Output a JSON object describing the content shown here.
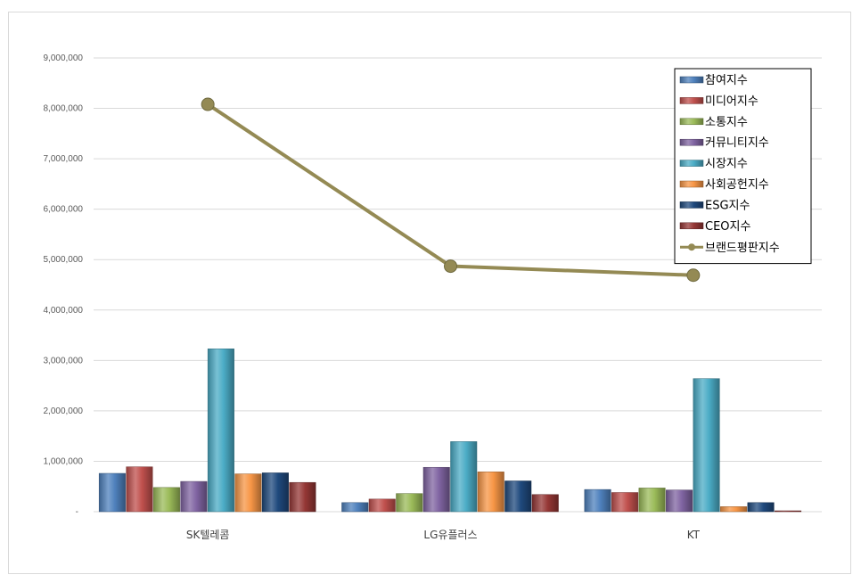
{
  "chart_data": {
    "type": "bar",
    "categories": [
      "SK텔레콤",
      "LG유플러스",
      "KT"
    ],
    "series": [
      {
        "name": "참여지수",
        "color": "#4f81bd",
        "values": [
          760000,
          180000,
          440000
        ]
      },
      {
        "name": "미디어지수",
        "color": "#c0504d",
        "values": [
          890000,
          250000,
          380000
        ]
      },
      {
        "name": "소통지수",
        "color": "#9bbb59",
        "values": [
          480000,
          360000,
          470000
        ]
      },
      {
        "name": "커뮤니티지수",
        "color": "#8064a2",
        "values": [
          600000,
          880000,
          430000
        ]
      },
      {
        "name": "시장지수",
        "color": "#4bacc6",
        "values": [
          3230000,
          1390000,
          2640000
        ]
      },
      {
        "name": "사회공헌지수",
        "color": "#f79646",
        "values": [
          750000,
          790000,
          100000
        ]
      },
      {
        "name": "ESG지수",
        "color": "#1f497d",
        "values": [
          770000,
          610000,
          180000
        ]
      },
      {
        "name": "CEO지수",
        "color": "#953735",
        "values": [
          580000,
          340000,
          10000
        ]
      }
    ],
    "line_series": {
      "name": "브랜드평판지수",
      "color": "#948a54",
      "values": [
        8080000,
        4870000,
        4690000
      ]
    },
    "y_ticks": [
      "-",
      "1,000,000",
      "2,000,000",
      "3,000,000",
      "4,000,000",
      "5,000,000",
      "6,000,000",
      "7,000,000",
      "8,000,000",
      "9,000,000"
    ],
    "ylim": [
      0,
      9000000
    ],
    "grid": true,
    "legend_position": "top-right"
  }
}
